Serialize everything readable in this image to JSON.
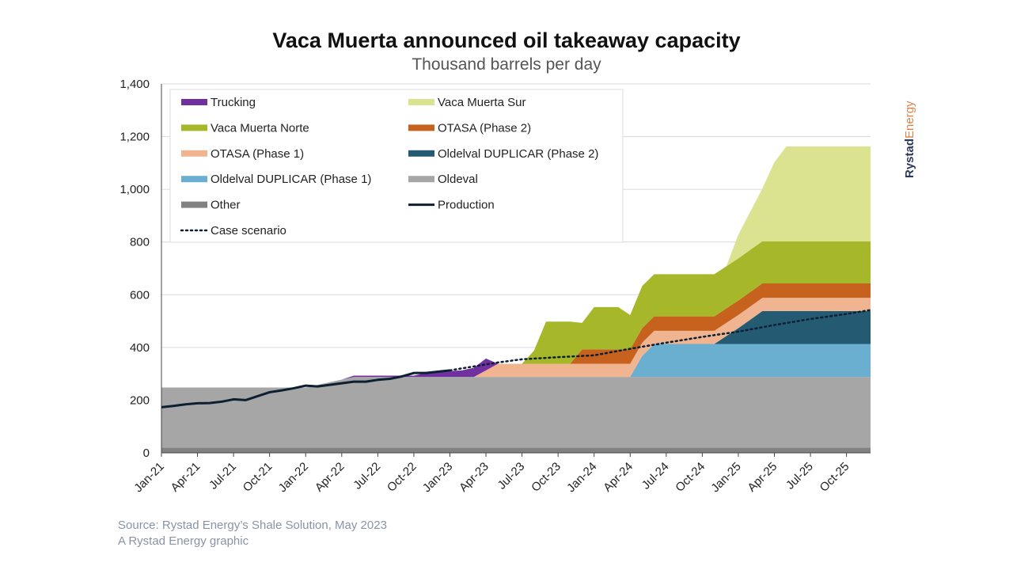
{
  "chart_data": {
    "type": "area",
    "title": "Vaca Muerta announced oil takeaway capacity",
    "subtitle": "Thousand barrels per day",
    "xlabel": "",
    "ylabel": "",
    "ylim": [
      0,
      1400
    ],
    "yticks": [
      0,
      200,
      400,
      600,
      800,
      1000,
      1200,
      1400
    ],
    "ytick_labels": [
      "0",
      "200",
      "400",
      "600",
      "800",
      "1,000",
      "1,200",
      "1,400"
    ],
    "x_range_months": [
      "Jan-21",
      "Dec-25"
    ],
    "xtick_labels": [
      "Jan-21",
      "Apr-21",
      "Jul-21",
      "Oct-21",
      "Jan-22",
      "Apr-22",
      "Jul-22",
      "Oct-22",
      "Jan-23",
      "Apr-23",
      "Jul-23",
      "Oct-23",
      "Jan-24",
      "Apr-24",
      "Jul-24",
      "Oct-24",
      "Jan-25",
      "Apr-25",
      "Jul-25",
      "Oct-25"
    ],
    "grid": true,
    "legend_position": "top-left",
    "series": [
      {
        "name": "Other",
        "kind": "area",
        "color": "#828282",
        "points": [
          [
            "Jan-21",
            20
          ],
          [
            "Dec-25",
            20
          ]
        ]
      },
      {
        "name": "Oldeval",
        "kind": "area",
        "color": "#a6a6a6",
        "points": [
          [
            "Jan-21",
            228
          ],
          [
            "Jan-22",
            228
          ],
          [
            "Mar-22",
            248
          ],
          [
            "May-22",
            268
          ],
          [
            "Dec-25",
            268
          ]
        ]
      },
      {
        "name": "Oldelval DUPLICAR (Phase 1)",
        "kind": "area",
        "color": "#6aaed0",
        "points": [
          [
            "Jan-21",
            0
          ],
          [
            "Apr-24",
            0
          ],
          [
            "May-24",
            80
          ],
          [
            "Jun-24",
            125
          ],
          [
            "Dec-25",
            125
          ]
        ]
      },
      {
        "name": "Oldelval DUPLICAR (Phase 2)",
        "kind": "area",
        "color": "#245a72",
        "points": [
          [
            "Jan-21",
            0
          ],
          [
            "Nov-24",
            0
          ],
          [
            "Jan-25",
            60
          ],
          [
            "Mar-25",
            125
          ],
          [
            "Dec-25",
            125
          ]
        ]
      },
      {
        "name": "OTASA (Phase 1)",
        "kind": "area",
        "color": "#f0b590",
        "points": [
          [
            "Jan-21",
            0
          ],
          [
            "Mar-23",
            0
          ],
          [
            "May-23",
            50
          ],
          [
            "Dec-25",
            50
          ]
        ]
      },
      {
        "name": "OTASA (Phase 2)",
        "kind": "area",
        "color": "#c6621e",
        "points": [
          [
            "Jan-21",
            0
          ],
          [
            "Nov-23",
            0
          ],
          [
            "Dec-23",
            55
          ],
          [
            "Dec-25",
            55
          ]
        ]
      },
      {
        "name": "Vaca Muerta Norte",
        "kind": "area",
        "color": "#a6b82a",
        "points": [
          [
            "Jan-21",
            0
          ],
          [
            "Jul-23",
            0
          ],
          [
            "Aug-23",
            50
          ],
          [
            "Sep-23",
            160
          ],
          [
            "Nov-23",
            160
          ],
          [
            "Dec-23",
            100
          ],
          [
            "Jan-24",
            160
          ],
          [
            "Mar-24",
            160
          ],
          [
            "Apr-24",
            130
          ],
          [
            "May-24",
            160
          ],
          [
            "Dec-25",
            160
          ]
        ]
      },
      {
        "name": "Vaca Muerta Sur",
        "kind": "area",
        "color": "#dce390",
        "points": [
          [
            "Jan-21",
            0
          ],
          [
            "Dec-24",
            0
          ],
          [
            "Jan-25",
            90
          ],
          [
            "Mar-25",
            200
          ],
          [
            "Apr-25",
            300
          ],
          [
            "May-25",
            360
          ],
          [
            "Dec-25",
            360
          ]
        ]
      },
      {
        "name": "Trucking",
        "kind": "area",
        "color": "#7030a0",
        "points": [
          [
            "Jan-21",
            0
          ],
          [
            "Apr-22",
            0
          ],
          [
            "May-22",
            5
          ],
          [
            "Oct-22",
            5
          ],
          [
            "Nov-22",
            15
          ],
          [
            "Dec-22",
            20
          ],
          [
            "Feb-23",
            25
          ],
          [
            "Apr-23",
            45
          ],
          [
            "May-23",
            0
          ],
          [
            "Dec-25",
            0
          ]
        ]
      },
      {
        "name": "Production",
        "kind": "line",
        "color": "#0d1f33",
        "points": [
          [
            "Jan-21",
            173
          ],
          [
            "Feb-21",
            178
          ],
          [
            "Mar-21",
            184
          ],
          [
            "Apr-21",
            188
          ],
          [
            "May-21",
            189
          ],
          [
            "Jun-21",
            194
          ],
          [
            "Jul-21",
            203
          ],
          [
            "Aug-21",
            200
          ],
          [
            "Sep-21",
            215
          ],
          [
            "Oct-21",
            230
          ],
          [
            "Nov-21",
            237
          ],
          [
            "Dec-21",
            245
          ],
          [
            "Jan-22",
            255
          ],
          [
            "Feb-22",
            252
          ],
          [
            "Mar-22",
            258
          ],
          [
            "Apr-22",
            264
          ],
          [
            "May-22",
            270
          ],
          [
            "Jun-22",
            270
          ],
          [
            "Jul-22",
            277
          ],
          [
            "Aug-22",
            281
          ],
          [
            "Sep-22",
            290
          ],
          [
            "Oct-22",
            303
          ],
          [
            "Nov-22",
            303
          ],
          [
            "Dec-22",
            308
          ],
          [
            "Jan-23",
            313
          ]
        ]
      },
      {
        "name": "Case scenario",
        "kind": "dotted",
        "color": "#0d1f33",
        "points": [
          [
            "Jan-23",
            313
          ],
          [
            "Mar-23",
            328
          ],
          [
            "May-23",
            343
          ],
          [
            "Jul-23",
            355
          ],
          [
            "Oct-23",
            363
          ],
          [
            "Jan-24",
            370
          ],
          [
            "Apr-24",
            395
          ],
          [
            "Jul-24",
            418
          ],
          [
            "Oct-24",
            440
          ],
          [
            "Jan-25",
            460
          ],
          [
            "Apr-25",
            485
          ],
          [
            "Jul-25",
            508
          ],
          [
            "Oct-25",
            527
          ],
          [
            "Dec-25",
            542
          ]
        ]
      }
    ],
    "stack_order": [
      "Other",
      "Oldeval",
      "Oldelval DUPLICAR (Phase 1)",
      "Oldelval DUPLICAR (Phase 2)",
      "OTASA (Phase 1)",
      "OTASA (Phase 2)",
      "Vaca Muerta Norte",
      "Vaca Muerta Sur",
      "Trucking"
    ],
    "legend_items": [
      {
        "label": "Trucking",
        "color": "#7030a0",
        "kind": "area"
      },
      {
        "label": "Vaca Muerta Sur",
        "color": "#dce390",
        "kind": "area"
      },
      {
        "label": "Vaca Muerta Norte",
        "color": "#a6b82a",
        "kind": "area"
      },
      {
        "label": "OTASA (Phase 2)",
        "color": "#c6621e",
        "kind": "area"
      },
      {
        "label": "OTASA (Phase 1)",
        "color": "#f0b590",
        "kind": "area"
      },
      {
        "label": "Oldelval DUPLICAR (Phase 2)",
        "color": "#245a72",
        "kind": "area"
      },
      {
        "label": "Oldelval DUPLICAR (Phase 1)",
        "color": "#6aaed0",
        "kind": "area"
      },
      {
        "label": "Oldeval",
        "color": "#a6a6a6",
        "kind": "area"
      },
      {
        "label": "Other",
        "color": "#828282",
        "kind": "area"
      },
      {
        "label": "Production",
        "color": "#0d1f33",
        "kind": "line"
      },
      {
        "label": "Case scenario",
        "color": "#0d1f33",
        "kind": "dotted"
      }
    ]
  },
  "footer": {
    "source": "Source: Rystad Energy’s Shale Solution, May 2023",
    "credit": "A Rystad Energy graphic"
  },
  "brand": {
    "part1": "Rystad",
    "part2": "Energy"
  }
}
